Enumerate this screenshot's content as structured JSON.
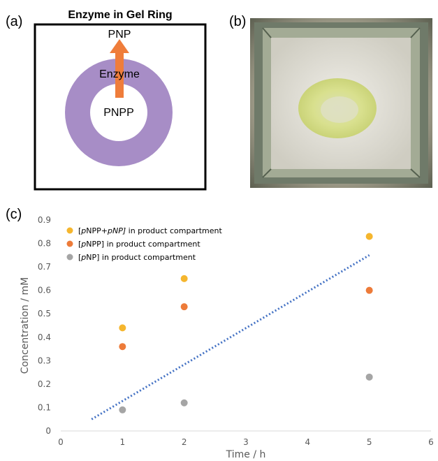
{
  "panels": {
    "a": "(a)",
    "b": "(b)",
    "c": "(c)"
  },
  "diagram": {
    "title": "Enzyme in Gel Ring",
    "product_label": "PNP",
    "ring_label": "Enzyme",
    "substrate_label": "PNPP",
    "colors": {
      "ring": "#a78dc6",
      "arrow": "#ef7d3b",
      "frame": "#000000"
    }
  },
  "photo": {
    "icon": "gel-ring-photo"
  },
  "chart_data": {
    "type": "scatter",
    "xlabel": "Time / h",
    "ylabel": "Concentration / mM",
    "xlim": [
      0,
      6
    ],
    "ylim": [
      0,
      0.9
    ],
    "xticks": [
      "0",
      "1",
      "2",
      "3",
      "4",
      "5",
      "6"
    ],
    "yticks": [
      "0",
      "0.1",
      "0.2",
      "0.3",
      "0.4",
      "0.5",
      "0.6",
      "0.7",
      "0.8",
      "0.9"
    ],
    "grid": false,
    "legend_position": "top-left",
    "series": [
      {
        "name_parts": [
          [
            "[",
            ""
          ],
          [
            "p",
            "i"
          ],
          [
            "NPP+",
            ""
          ],
          [
            "p",
            "i"
          ],
          [
            "NP]",
            "i"
          ],
          [
            " in product compartment",
            ""
          ]
        ],
        "color": "#f5b62e",
        "x": [
          1,
          2,
          5
        ],
        "y": [
          0.44,
          0.65,
          0.83
        ]
      },
      {
        "name_parts": [
          [
            "[",
            ""
          ],
          [
            "p",
            "i"
          ],
          [
            "NPP] in product compartment",
            ""
          ]
        ],
        "color": "#ed7b39",
        "x": [
          1,
          2,
          5
        ],
        "y": [
          0.36,
          0.53,
          0.6
        ]
      },
      {
        "name_parts": [
          [
            "[",
            ""
          ],
          [
            "p",
            "i"
          ],
          [
            "NP] in product compartment",
            ""
          ]
        ],
        "color": "#a5a5a5",
        "x": [
          1,
          2,
          5
        ],
        "y": [
          0.09,
          0.12,
          0.23
        ]
      }
    ],
    "trendline": {
      "color": "#4472c4",
      "x": [
        0.5,
        5
      ],
      "y": [
        0.05,
        0.75
      ]
    }
  }
}
